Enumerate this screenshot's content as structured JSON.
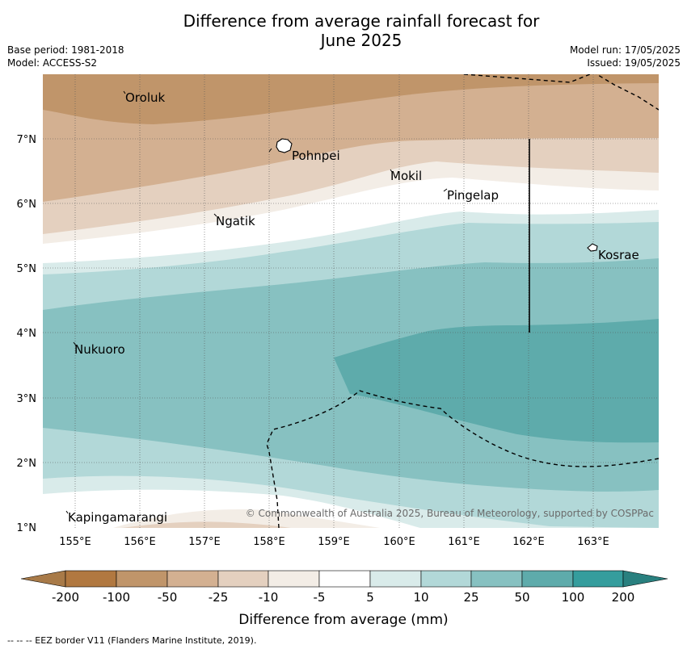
{
  "title": {
    "line1": "Difference from average rainfall forecast for",
    "line2": "June 2025"
  },
  "info": {
    "base_period": "Base period: 1981-2018",
    "model": "Model: ACCESS-S2",
    "model_run": "Model run: 17/05/2025",
    "issued": "Issued: 19/05/2025"
  },
  "map": {
    "lat_ticks": [
      "7°N",
      "6°N",
      "5°N",
      "4°N",
      "3°N",
      "2°N",
      "1°N"
    ],
    "lon_ticks": [
      "155°E",
      "156°E",
      "157°E",
      "158°E",
      "159°E",
      "160°E",
      "161°E",
      "162°E",
      "163°E"
    ],
    "places": [
      {
        "name": "Oroluk"
      },
      {
        "name": "Pohnpei"
      },
      {
        "name": "Mokil"
      },
      {
        "name": "Pingelap"
      },
      {
        "name": "Ngatik"
      },
      {
        "name": "Kosrae"
      },
      {
        "name": "Nukuoro"
      },
      {
        "name": "Kapingamarangi"
      }
    ],
    "copyright": "© Commonwealth of Australia 2025, Bureau of Meteorology, supported by COSPPac",
    "colors": {
      "c_neg100": "#c0956a",
      "c_neg50": "#d3b091",
      "c_neg25": "#e4d0bf",
      "c_neg10": "#f3ede6",
      "c_neutral": "#ffffff",
      "c_5": "#d9ebea",
      "c_10": "#b2d8d8",
      "c_25": "#87c1c1",
      "c_50": "#5eabab"
    }
  },
  "legend": {
    "title": "Difference from average (mm)",
    "ticks": [
      "-200",
      "-100",
      "-50",
      "-25",
      "-10",
      "-5",
      "5",
      "10",
      "25",
      "50",
      "100",
      "200"
    ],
    "colors": [
      "#a87a48",
      "#b17840",
      "#c0956a",
      "#d3b091",
      "#e4d0bf",
      "#f3ede6",
      "#ffffff",
      "#d9ebea",
      "#b2d8d8",
      "#87c1c1",
      "#5eabab",
      "#359d9d",
      "#29807f"
    ]
  },
  "footnote": "-- -- -- EEZ border V11 (Flanders Marine Institute, 2019)."
}
